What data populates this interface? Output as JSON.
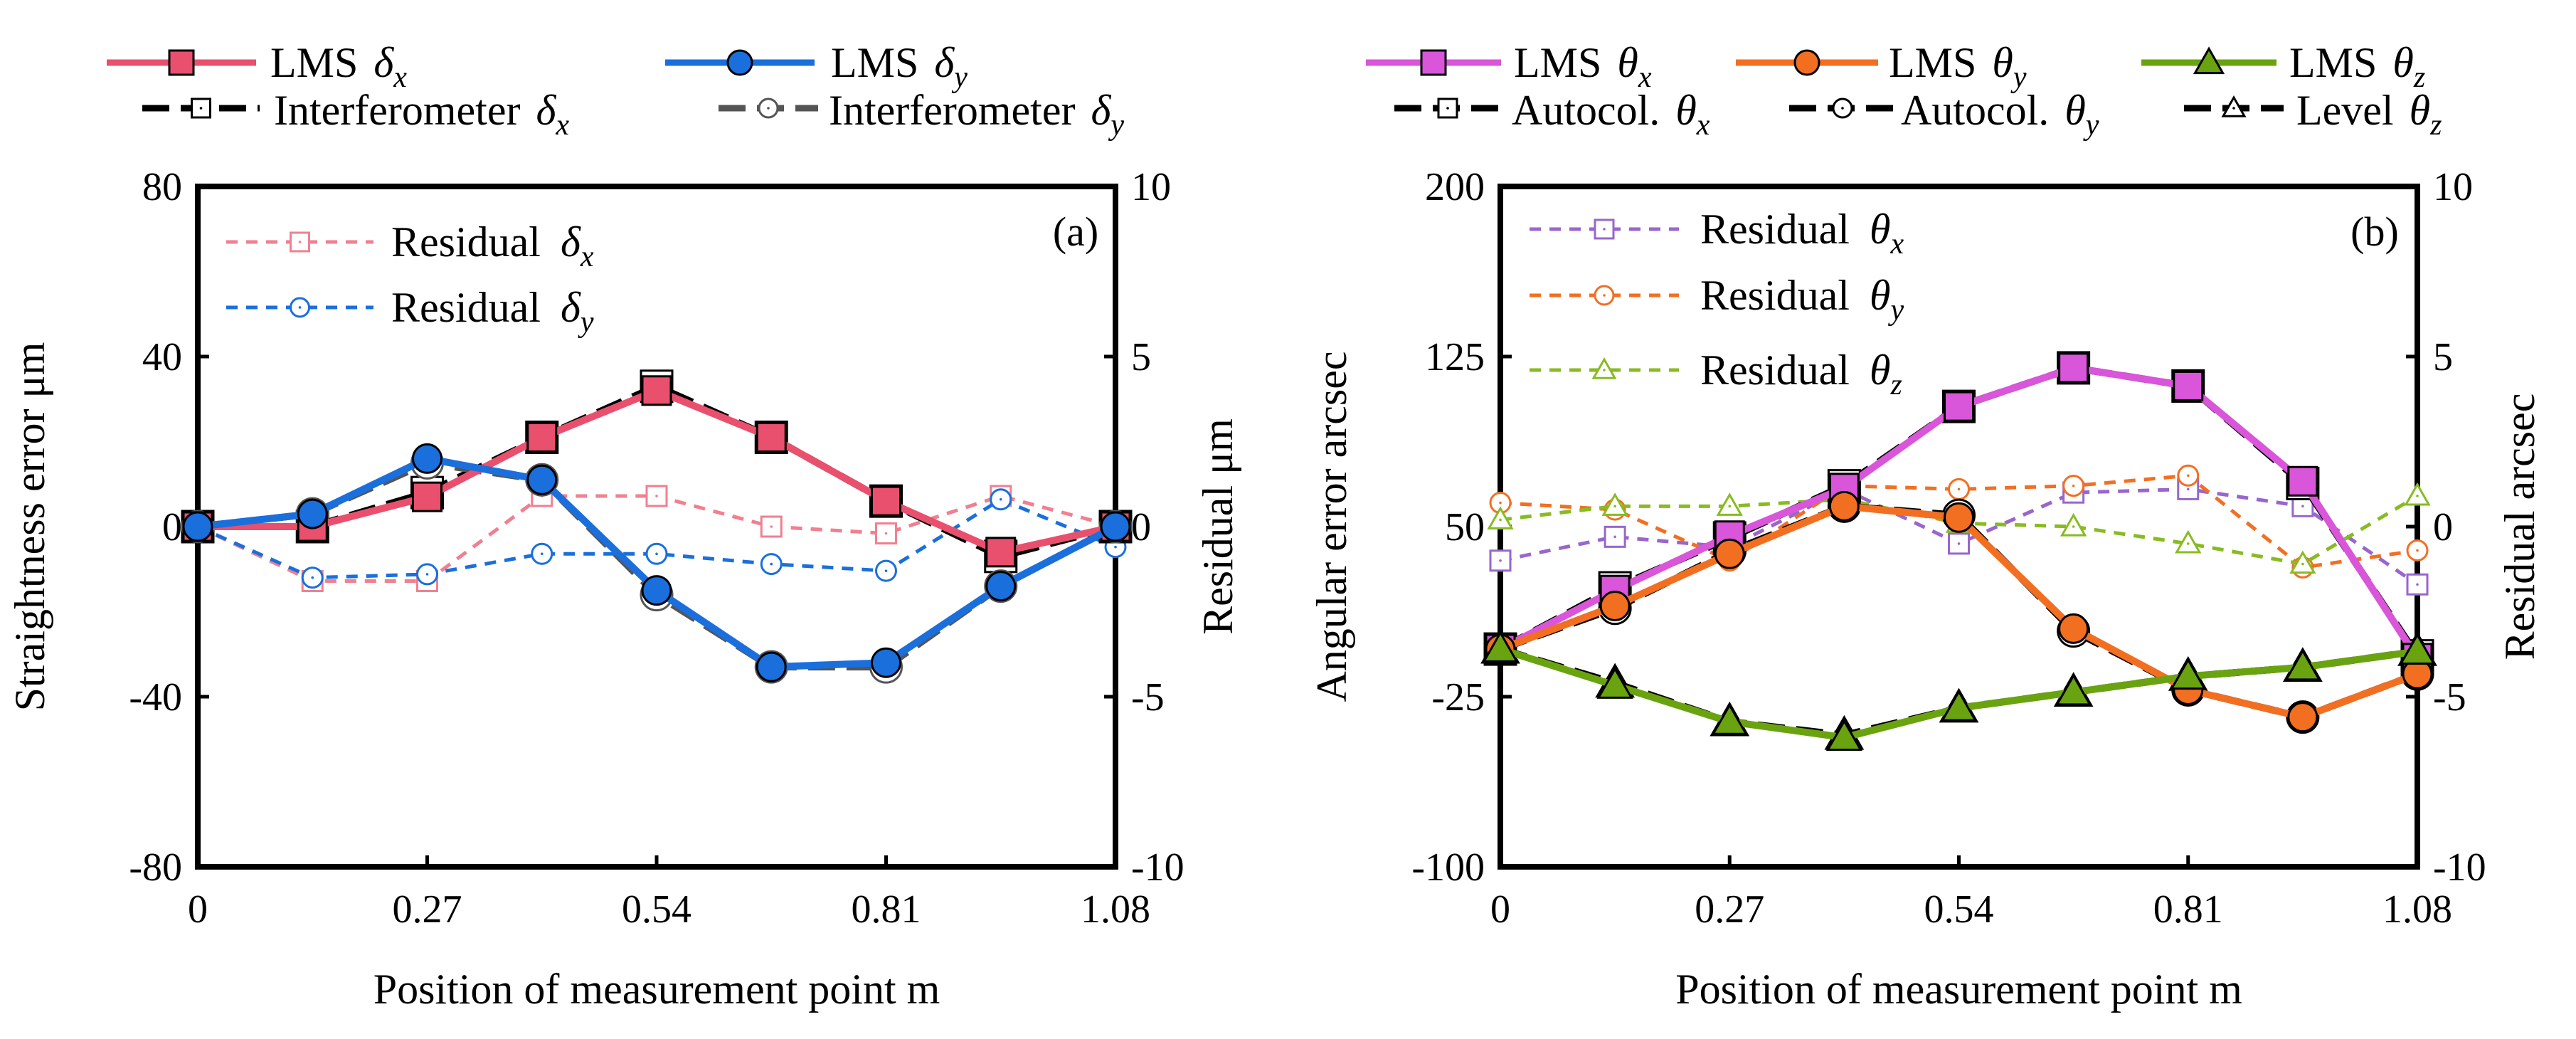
{
  "chart_data": [
    {
      "type": "line",
      "panel_label": "(a)",
      "xlabel": "Position of measurement point   m",
      "ylabel": "Straightness error   μm",
      "y2label": "Residual   μm",
      "x": [
        0,
        0.135,
        0.27,
        0.405,
        0.54,
        0.675,
        0.81,
        0.945,
        1.08
      ],
      "xticks": [
        "0",
        "0.27",
        "0.54",
        "0.81",
        "1.08"
      ],
      "xtick_values": [
        0,
        0.27,
        0.54,
        0.81,
        1.08
      ],
      "yticks": [
        "80",
        "40",
        "0",
        "-40",
        "-80"
      ],
      "ytick_values": [
        80,
        40,
        0,
        -40,
        -80
      ],
      "y2ticks": [
        "10",
        "5",
        "0",
        "-5",
        "-10"
      ],
      "y2tick_values": [
        10,
        5,
        0,
        -5,
        -10
      ],
      "xlim": [
        0,
        1.08
      ],
      "ylim": [
        -80,
        80
      ],
      "y2lim": [
        -10,
        10
      ],
      "legend_top": [
        {
          "name": "LMS",
          "sym": "δ",
          "sub": "x"
        },
        {
          "name": "LMS",
          "sym": "δ",
          "sub": "y"
        },
        {
          "name": "Interferometer",
          "sym": "δ",
          "sub": "x"
        },
        {
          "name": "Interferometer",
          "sym": "δ",
          "sub": "y"
        }
      ],
      "legend_inner": [
        {
          "name": "Residual",
          "sym": "δ",
          "sub": "x"
        },
        {
          "name": "Residual",
          "sym": "δ",
          "sub": "y"
        }
      ],
      "series": [
        {
          "name": "Interferometer δx",
          "axis": "left",
          "color": "#000000",
          "dash": "long",
          "marker": "open-square",
          "values": [
            0,
            0,
            8,
            21,
            33,
            21,
            6,
            -7,
            0
          ]
        },
        {
          "name": "Interferometer δy",
          "axis": "left",
          "color": "#555555",
          "dash": "long",
          "marker": "open-circle",
          "values": [
            0,
            3,
            15,
            11,
            -16,
            -33,
            -33,
            -14,
            0
          ]
        },
        {
          "name": "LMS δx",
          "axis": "left",
          "color": "#e8506e",
          "dash": "solid",
          "marker": "filled-square",
          "values": [
            0,
            0,
            7,
            21,
            32,
            21,
            6,
            -6,
            0
          ]
        },
        {
          "name": "LMS δy",
          "axis": "left",
          "color": "#1a6fdc",
          "dash": "solid",
          "marker": "filled-circle",
          "values": [
            0,
            3,
            16,
            11,
            -15,
            -33,
            -32,
            -14,
            0
          ]
        },
        {
          "name": "Residual δx",
          "axis": "right",
          "color": "#f08090",
          "dash": "short",
          "marker": "open-square",
          "values": [
            0,
            -1.6,
            -1.6,
            0.9,
            0.9,
            0,
            -0.2,
            0.9,
            0
          ]
        },
        {
          "name": "Residual δy",
          "axis": "right",
          "color": "#1a6fdc",
          "dash": "short",
          "marker": "open-circle",
          "values": [
            0,
            -1.5,
            -1.4,
            -0.8,
            -0.8,
            -1.1,
            -1.3,
            0.8,
            -0.6
          ]
        }
      ]
    },
    {
      "type": "line",
      "panel_label": "(b)",
      "xlabel": "Position of measurement point   m",
      "ylabel": "Angular error   arcsec",
      "y2label": "Residual   arcsec",
      "x": [
        0,
        0.135,
        0.27,
        0.405,
        0.54,
        0.675,
        0.81,
        0.945,
        1.08
      ],
      "xticks": [
        "0",
        "0.27",
        "0.54",
        "0.81",
        "1.08"
      ],
      "xtick_values": [
        0,
        0.27,
        0.54,
        0.81,
        1.08
      ],
      "yticks": [
        "200",
        "125",
        "50",
        "-25",
        "-100"
      ],
      "ytick_values": [
        200,
        125,
        50,
        -25,
        -100
      ],
      "y2ticks": [
        "10",
        "5",
        "0",
        "-5",
        "-10"
      ],
      "y2tick_values": [
        10,
        5,
        0,
        -5,
        -10
      ],
      "xlim": [
        0,
        1.08
      ],
      "ylim": [
        -100,
        200
      ],
      "y2lim": [
        -10,
        10
      ],
      "legend_top": [
        {
          "name": "LMS",
          "sym": "θ",
          "sub": "x"
        },
        {
          "name": "LMS",
          "sym": "θ",
          "sub": "y"
        },
        {
          "name": "LMS",
          "sym": "θ",
          "sub": "z"
        },
        {
          "name": "Autocol.",
          "sym": "θ",
          "sub": "x"
        },
        {
          "name": "Autocol.",
          "sym": "θ",
          "sub": "y"
        },
        {
          "name": "Level",
          "sym": "θ",
          "sub": "z"
        }
      ],
      "legend_inner": [
        {
          "name": "Residual",
          "sym": "θ",
          "sub": "x"
        },
        {
          "name": "Residual",
          "sym": "θ",
          "sub": "y"
        },
        {
          "name": "Residual",
          "sym": "θ",
          "sub": "z"
        }
      ],
      "series": [
        {
          "name": "Autocol. θx",
          "axis": "left",
          "color": "#000000",
          "dash": "long",
          "marker": "open-square",
          "values": [
            -4,
            23,
            45,
            68,
            103,
            120,
            112,
            69,
            -7
          ]
        },
        {
          "name": "Autocol. θy",
          "axis": "left",
          "color": "#000000",
          "dash": "long",
          "marker": "open-circle",
          "values": [
            -4,
            14,
            39,
            59,
            55,
            4,
            -22,
            -34,
            -15
          ]
        },
        {
          "name": "Level θz",
          "axis": "left",
          "color": "#000000",
          "dash": "long",
          "marker": "open-triangle",
          "values": [
            -4,
            -19,
            -36,
            -42,
            -30,
            -23,
            -16,
            -12,
            -5
          ]
        },
        {
          "name": "LMS θx",
          "axis": "left",
          "color": "#d955d9",
          "dash": "solid",
          "marker": "filled-square",
          "values": [
            -4,
            22,
            46,
            67,
            103,
            120,
            112,
            70,
            -8
          ]
        },
        {
          "name": "LMS θy",
          "axis": "left",
          "color": "#f26f22",
          "dash": "solid",
          "marker": "filled-circle",
          "values": [
            -4,
            15,
            38,
            59,
            54,
            5,
            -22,
            -34,
            -15
          ]
        },
        {
          "name": "LMS θz",
          "axis": "left",
          "color": "#6aa310",
          "dash": "solid",
          "marker": "filled-triangle",
          "values": [
            -4,
            -20,
            -36,
            -43,
            -30,
            -23,
            -16,
            -12,
            -5
          ]
        },
        {
          "name": "Residual θx",
          "axis": "right",
          "color": "#9966cc",
          "dash": "short",
          "marker": "open-square",
          "values": [
            -1,
            -0.3,
            -0.6,
            1.1,
            -0.5,
            1.0,
            1.1,
            0.6,
            -1.7
          ]
        },
        {
          "name": "Residual θy",
          "axis": "right",
          "color": "#f26f22",
          "dash": "short",
          "marker": "open-circle",
          "values": [
            0.7,
            0.5,
            -1.0,
            1.2,
            1.1,
            1.2,
            1.5,
            -1.2,
            -0.7
          ]
        },
        {
          "name": "Residual θz",
          "axis": "right",
          "color": "#88bb22",
          "dash": "short",
          "marker": "open-triangle",
          "values": [
            0.2,
            0.6,
            0.6,
            0.8,
            0.1,
            0.0,
            -0.5,
            -1.1,
            0.9
          ]
        }
      ]
    }
  ]
}
